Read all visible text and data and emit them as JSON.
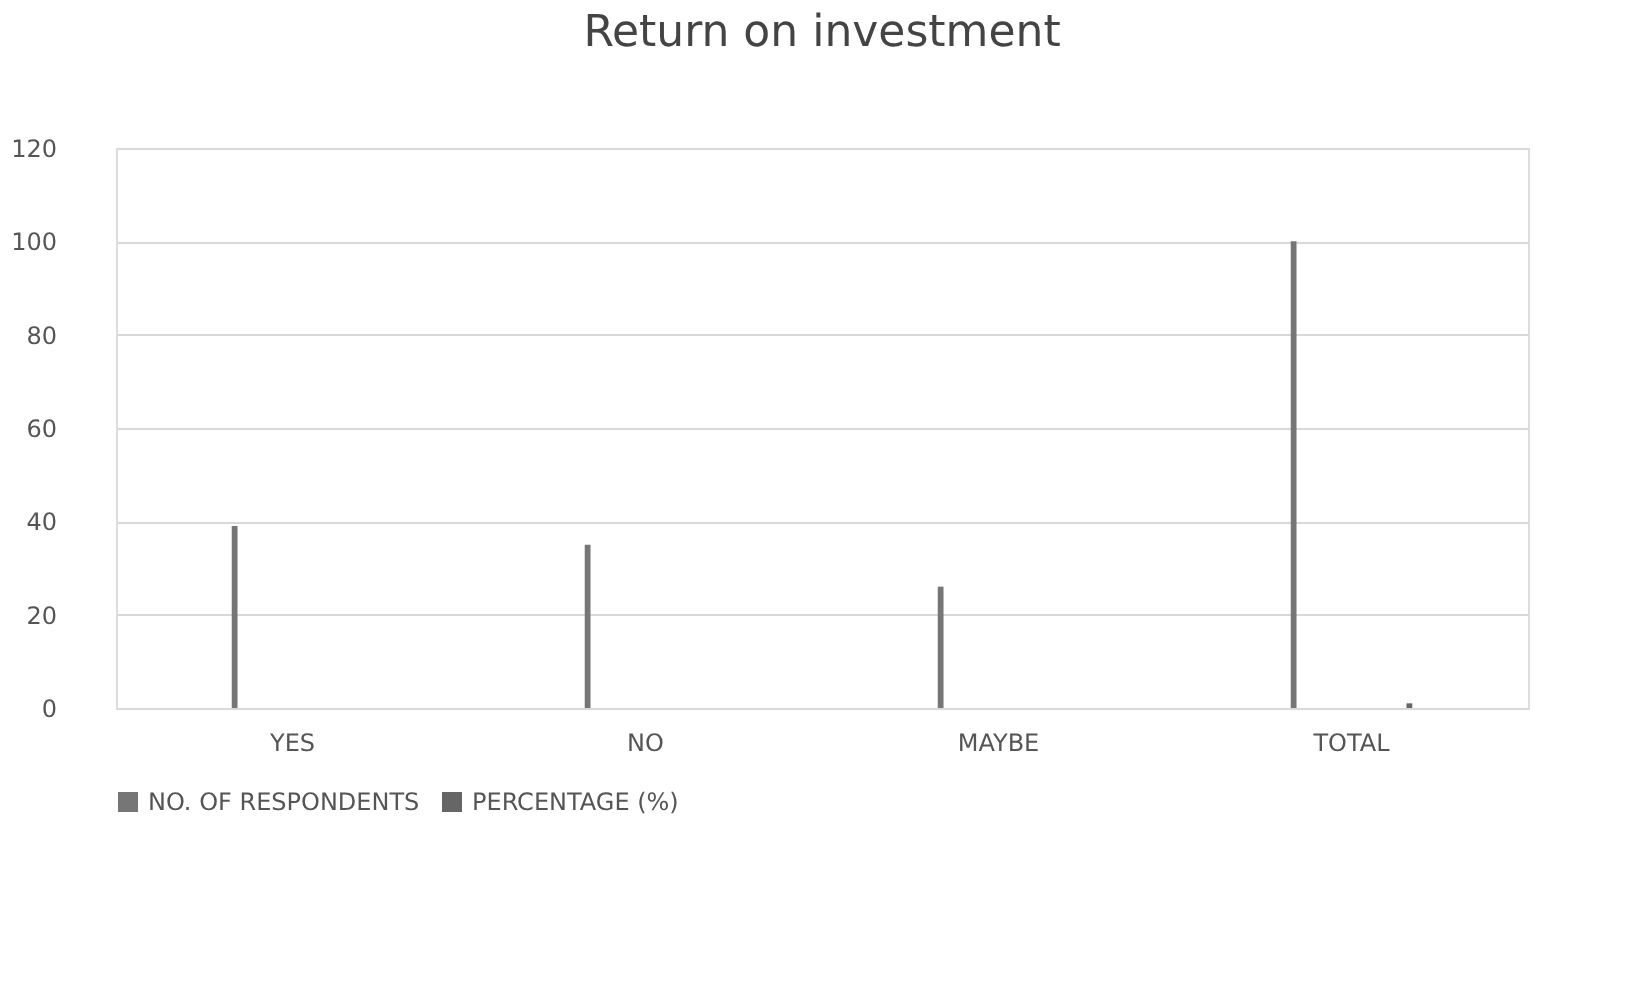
{
  "chart_data": {
    "type": "bar",
    "title": "Return on investment",
    "categories": [
      "YES",
      "NO",
      "MAYBE",
      "TOTAL"
    ],
    "series": [
      {
        "name": "NO. OF RESPONDENTS",
        "color": "#767676",
        "values": [
          39,
          35,
          26,
          100
        ]
      },
      {
        "name": "PERCENTAGE (%)",
        "color": "#666666",
        "values": [
          null,
          null,
          null,
          1
        ]
      }
    ],
    "ylim": [
      0,
      120
    ],
    "yticks": [
      0,
      20,
      40,
      60,
      80,
      100,
      120
    ],
    "grid": "y",
    "legend": "bottom"
  }
}
